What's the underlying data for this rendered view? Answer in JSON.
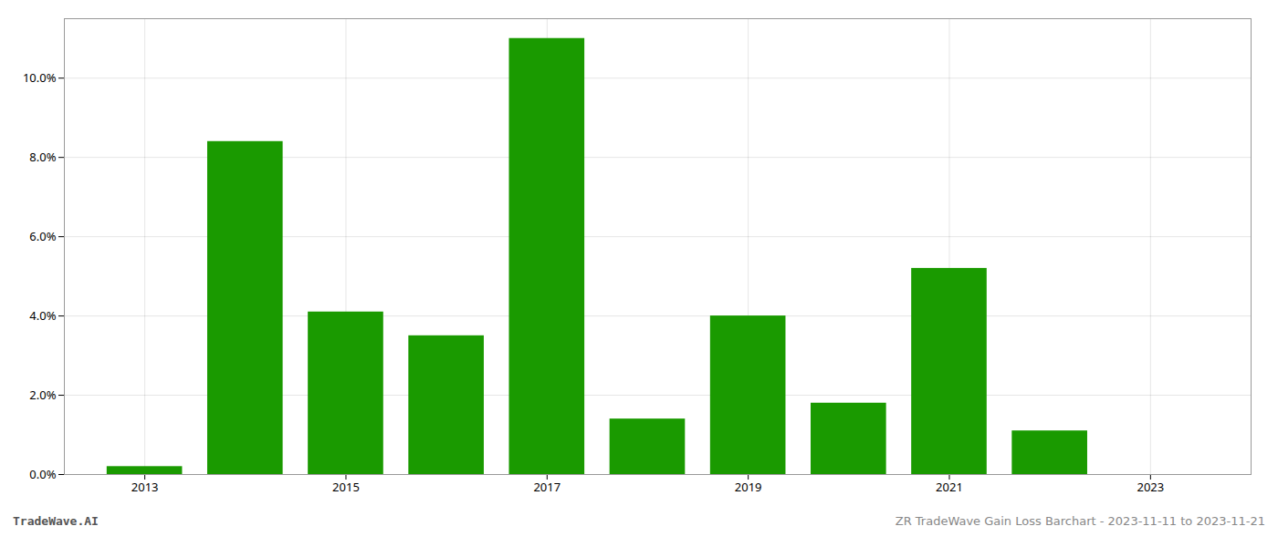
{
  "chart_data": {
    "type": "bar",
    "x": [
      2013,
      2014,
      2015,
      2016,
      2017,
      2018,
      2019,
      2020,
      2021,
      2022,
      2023
    ],
    "values": [
      0.002,
      0.084,
      0.041,
      0.035,
      0.11,
      0.014,
      0.04,
      0.018,
      0.052,
      0.011,
      0.0
    ],
    "color": "#1a9a00",
    "xlim": [
      2012.2,
      2024.0
    ],
    "xticks": [
      2013,
      2015,
      2017,
      2019,
      2021,
      2023
    ],
    "ylim": [
      0,
      0.115
    ],
    "yticks": [
      {
        "value": 0.0,
        "label": "0.0%"
      },
      {
        "value": 0.02,
        "label": "2.0%"
      },
      {
        "value": 0.04,
        "label": "4.0%"
      },
      {
        "value": 0.06,
        "label": "6.0%"
      },
      {
        "value": 0.08,
        "label": "8.0%"
      },
      {
        "value": 0.1,
        "label": "10.0%"
      }
    ],
    "grid": true,
    "annotations": [
      "TradeWave.AI",
      "ZR TradeWave Gain Loss Barchart - 2023-11-11 to 2023-11-21"
    ]
  }
}
